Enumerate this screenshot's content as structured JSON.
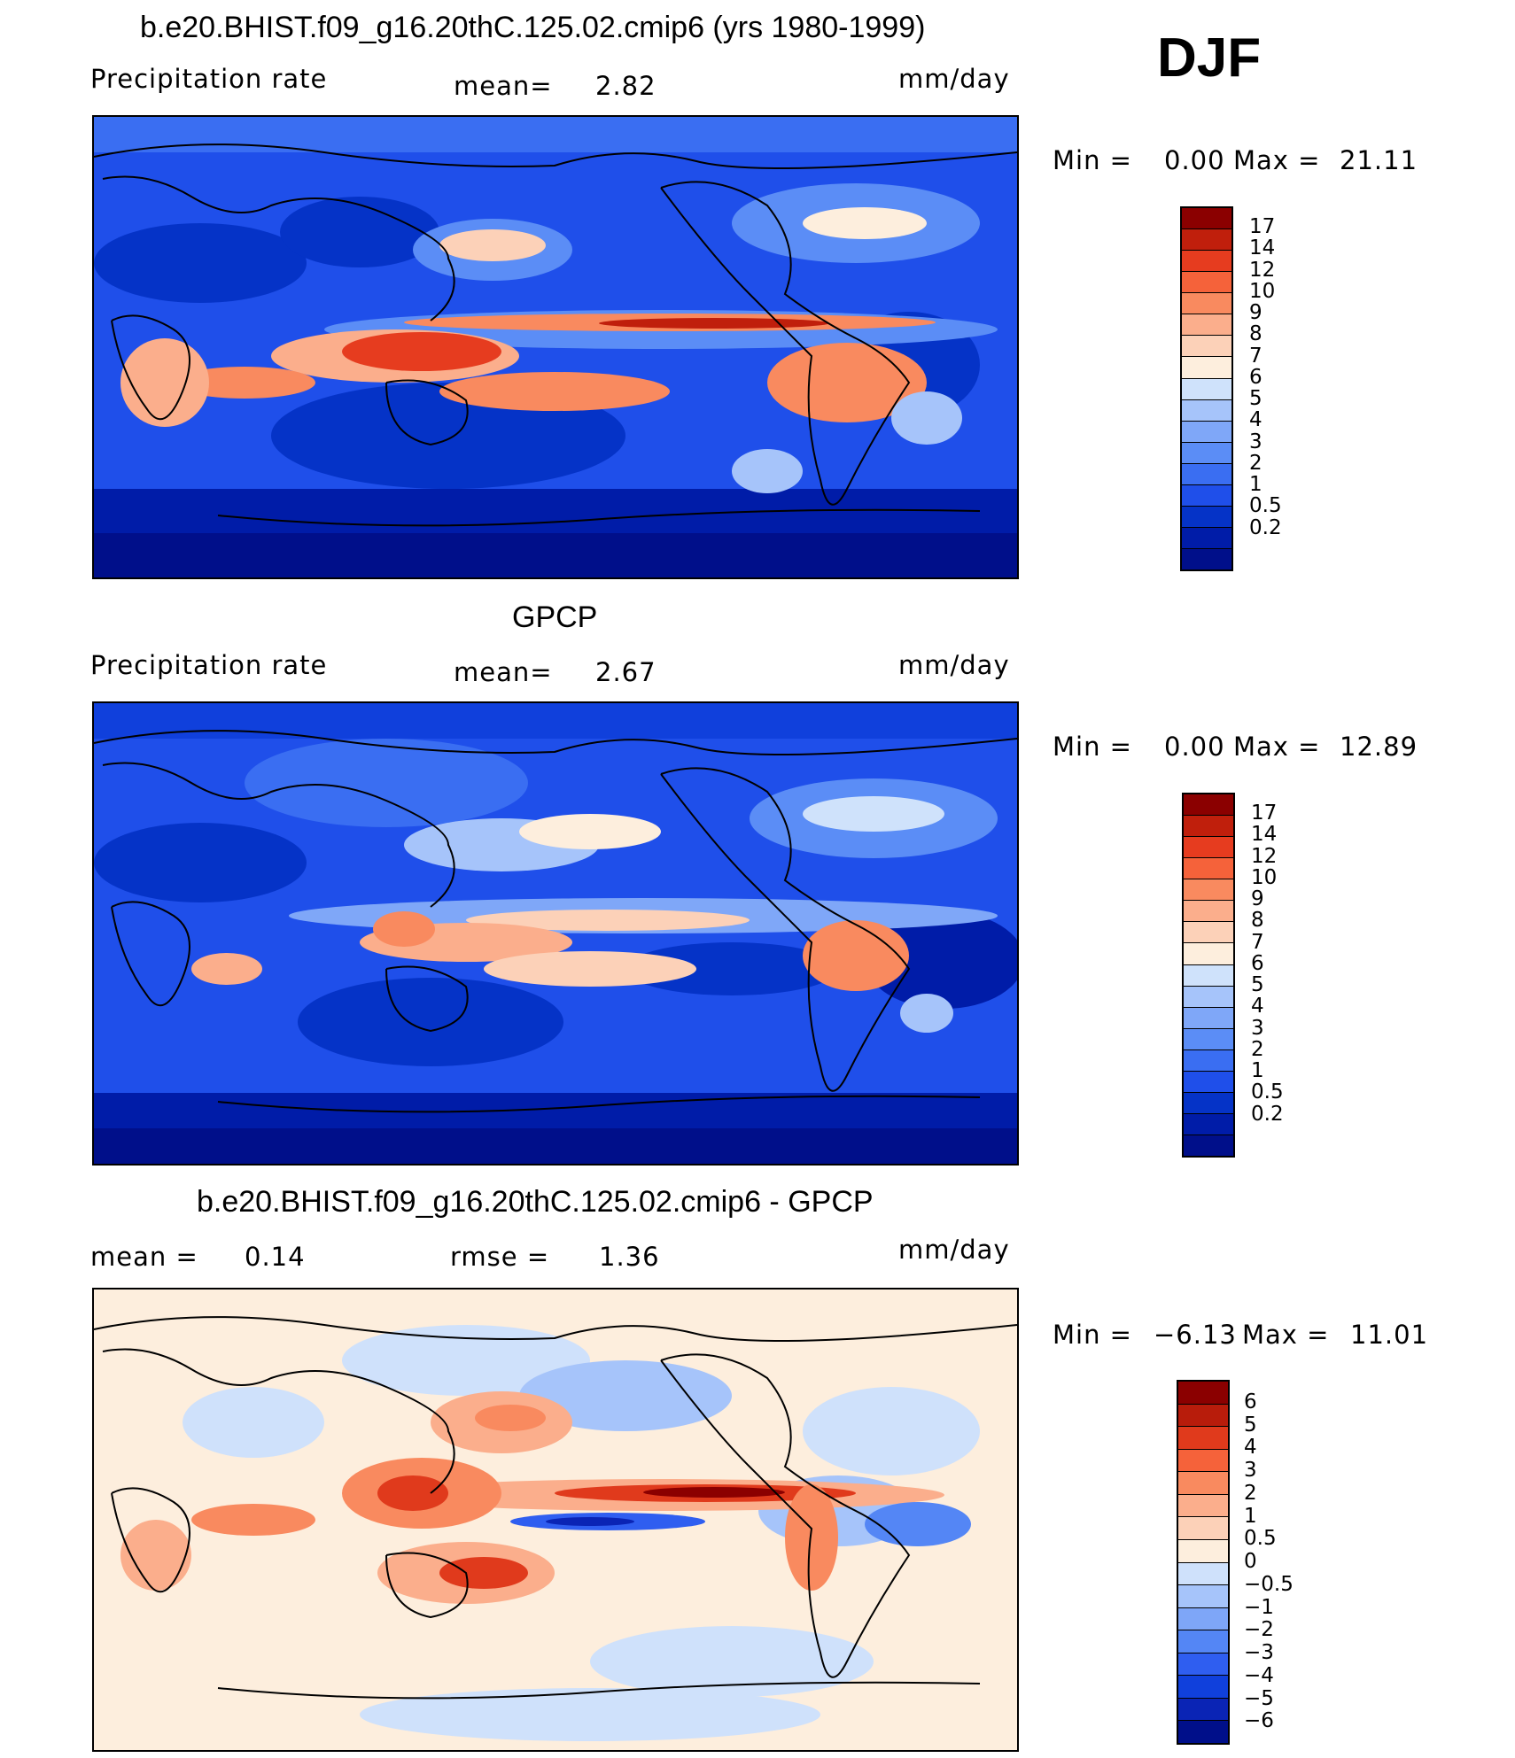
{
  "season": "DJF",
  "colors": {
    "precip": [
      "#000f8a",
      "#001ca8",
      "#0533c7",
      "#1f4fea",
      "#3a6ef2",
      "#5b8df6",
      "#7fa7f8",
      "#a6c4fa",
      "#cfe2fb",
      "#fdeedd",
      "#fcd1b8",
      "#fbae8c",
      "#f98a5f",
      "#f5623a",
      "#e63c1f",
      "#c01f0c",
      "#8b0000"
    ],
    "diff": [
      "#000f8a",
      "#0a24b5",
      "#1040dc",
      "#2f5ef0",
      "#5486f5",
      "#7ea6f8",
      "#a6c4fa",
      "#cfe1fb",
      "#fdeedd",
      "#fcd1b8",
      "#fbae8c",
      "#f98a5f",
      "#f5623a",
      "#e03a1c",
      "#b81c0b",
      "#8b0000"
    ]
  },
  "panels": [
    {
      "title": "b.e20.BHIST.f09_g16.20thC.125.02.cmip6 (yrs 1980-1999)",
      "left_label": "Precipitation  rate",
      "mid_label": "mean=",
      "mid_value": "2.82",
      "units": "mm/day",
      "min_label": "Min  =",
      "min_value": "0.00",
      "max_label": "Max  =",
      "max_value": "21.11",
      "ticks": [
        "17",
        "14",
        "12",
        "10",
        "9",
        "8",
        "7",
        "6",
        "5",
        "4",
        "3",
        "2",
        "1",
        "0.5",
        "0.2"
      ]
    },
    {
      "title": "GPCP",
      "left_label": "Precipitation  rate",
      "mid_label": "mean=",
      "mid_value": "2.67",
      "units": "mm/day",
      "min_label": "Min  =",
      "min_value": "0.00",
      "max_label": "Max  =",
      "max_value": "12.89",
      "ticks": [
        "17",
        "14",
        "12",
        "10",
        "9",
        "8",
        "7",
        "6",
        "5",
        "4",
        "3",
        "2",
        "1",
        "0.5",
        "0.2"
      ]
    },
    {
      "title": "b.e20.BHIST.f09_g16.20thC.125.02.cmip6 - GPCP",
      "left_label": "mean  =",
      "left_value": "0.14",
      "mid_label": "rmse  =",
      "mid_value": "1.36",
      "units": "mm/day",
      "min_label": "Min  =",
      "min_value": "−6.13",
      "max_label": "Max  =",
      "max_value": "11.01",
      "ticks": [
        "6",
        "5",
        "4",
        "3",
        "2",
        "1",
        "0.5",
        "0",
        "−0.5",
        "−1",
        "−2",
        "−3",
        "−4",
        "−5",
        "−6"
      ]
    }
  ]
}
